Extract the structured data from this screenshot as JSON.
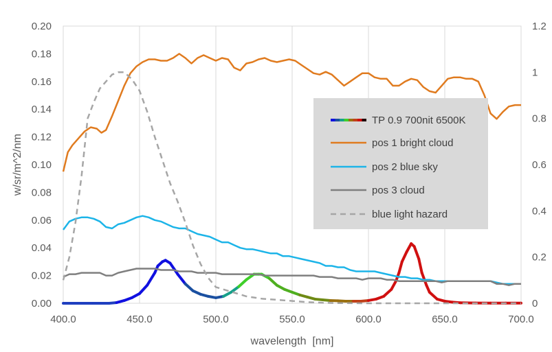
{
  "chart_data": {
    "type": "line",
    "title": "",
    "xlabel": "wavelength  [nm]",
    "ylabel": "w/sr/m^2/nm",
    "xlim": [
      400,
      700
    ],
    "ylim": [
      0,
      0.2
    ],
    "y2lim": [
      0,
      1.2
    ],
    "x_ticks": [
      "400.0",
      "450.0",
      "500.0",
      "550.0",
      "600.0",
      "650.0",
      "700.0"
    ],
    "y_ticks": [
      "0.00",
      "0.02",
      "0.04",
      "0.06",
      "0.08",
      "0.10",
      "0.12",
      "0.14",
      "0.16",
      "0.18",
      "0.20"
    ],
    "y2_ticks": [
      "0",
      "0.2",
      "0.4",
      "0.6",
      "0.8",
      "1",
      "1.2"
    ],
    "grid": "vertical",
    "legend_position": "center-right",
    "series": [
      {
        "name": "TP 0.9 700nit 6500K",
        "axis": "left",
        "style": "spectrum",
        "x": [
          400,
          410,
          420,
          425,
          430,
          435,
          440,
          445,
          450,
          455,
          460,
          462,
          465,
          467,
          470,
          475,
          480,
          485,
          490,
          495,
          500,
          505,
          510,
          515,
          520,
          525,
          528,
          530,
          535,
          540,
          545,
          550,
          555,
          560,
          565,
          570,
          575,
          580,
          585,
          590,
          595,
          600,
          605,
          610,
          615,
          618,
          620,
          622,
          625,
          628,
          630,
          633,
          635,
          638,
          640,
          645,
          650,
          655,
          660,
          670,
          680,
          690,
          700
        ],
        "y": [
          0,
          0,
          0,
          0,
          0,
          0.0005,
          0.002,
          0.004,
          0.007,
          0.013,
          0.022,
          0.027,
          0.03,
          0.031,
          0.029,
          0.021,
          0.014,
          0.009,
          0.0065,
          0.005,
          0.004,
          0.005,
          0.008,
          0.012,
          0.017,
          0.021,
          0.021,
          0.021,
          0.018,
          0.013,
          0.01,
          0.008,
          0.006,
          0.0045,
          0.003,
          0.0025,
          0.002,
          0.0018,
          0.0015,
          0.0015,
          0.0015,
          0.002,
          0.003,
          0.005,
          0.01,
          0.016,
          0.022,
          0.03,
          0.037,
          0.043,
          0.041,
          0.032,
          0.022,
          0.013,
          0.008,
          0.003,
          0.0015,
          0.0008,
          0.0004,
          0.0002,
          0.0001,
          0.0001,
          0.0001
        ]
      },
      {
        "name": "pos 1 bright cloud",
        "axis": "left",
        "color": "#E07B1F",
        "x": [
          400,
          403,
          406,
          410,
          414,
          418,
          422,
          425,
          428,
          432,
          436,
          440,
          444,
          448,
          452,
          456,
          460,
          464,
          468,
          472,
          476,
          480,
          484,
          488,
          492,
          496,
          500,
          504,
          508,
          512,
          516,
          520,
          524,
          528,
          532,
          536,
          540,
          544,
          548,
          552,
          556,
          560,
          564,
          568,
          572,
          576,
          580,
          584,
          588,
          592,
          596,
          600,
          604,
          608,
          612,
          616,
          620,
          624,
          628,
          632,
          636,
          640,
          644,
          648,
          652,
          656,
          660,
          664,
          668,
          672,
          676,
          680,
          684,
          688,
          692,
          696,
          700
        ],
        "y": [
          0.095,
          0.109,
          0.114,
          0.119,
          0.124,
          0.127,
          0.126,
          0.123,
          0.125,
          0.135,
          0.146,
          0.157,
          0.166,
          0.171,
          0.174,
          0.176,
          0.176,
          0.175,
          0.175,
          0.177,
          0.18,
          0.177,
          0.173,
          0.177,
          0.179,
          0.177,
          0.175,
          0.177,
          0.176,
          0.17,
          0.168,
          0.173,
          0.174,
          0.176,
          0.177,
          0.175,
          0.174,
          0.175,
          0.176,
          0.175,
          0.172,
          0.169,
          0.166,
          0.165,
          0.167,
          0.165,
          0.161,
          0.157,
          0.16,
          0.163,
          0.166,
          0.166,
          0.163,
          0.162,
          0.162,
          0.157,
          0.157,
          0.16,
          0.162,
          0.161,
          0.156,
          0.153,
          0.152,
          0.157,
          0.162,
          0.163,
          0.163,
          0.162,
          0.162,
          0.16,
          0.15,
          0.137,
          0.133,
          0.138,
          0.142,
          0.143,
          0.143
        ]
      },
      {
        "name": "pos 2 blue sky",
        "axis": "left",
        "color": "#1CB4E8",
        "x": [
          400,
          404,
          408,
          412,
          416,
          420,
          424,
          428,
          432,
          436,
          440,
          444,
          448,
          452,
          456,
          460,
          464,
          468,
          472,
          476,
          480,
          484,
          488,
          492,
          496,
          500,
          504,
          508,
          512,
          516,
          520,
          524,
          528,
          532,
          536,
          540,
          544,
          548,
          552,
          556,
          560,
          564,
          568,
          572,
          576,
          580,
          584,
          588,
          592,
          596,
          600,
          604,
          608,
          612,
          616,
          620,
          624,
          628,
          632,
          636,
          640,
          644,
          648,
          652,
          656,
          660,
          664,
          668,
          672,
          676,
          680,
          684,
          688,
          692,
          696,
          700
        ],
        "y": [
          0.053,
          0.059,
          0.061,
          0.062,
          0.062,
          0.061,
          0.059,
          0.055,
          0.054,
          0.057,
          0.058,
          0.06,
          0.062,
          0.063,
          0.062,
          0.06,
          0.059,
          0.057,
          0.055,
          0.054,
          0.054,
          0.052,
          0.05,
          0.049,
          0.048,
          0.046,
          0.044,
          0.044,
          0.042,
          0.04,
          0.039,
          0.039,
          0.038,
          0.037,
          0.036,
          0.036,
          0.034,
          0.034,
          0.033,
          0.032,
          0.031,
          0.03,
          0.029,
          0.027,
          0.027,
          0.026,
          0.026,
          0.024,
          0.023,
          0.023,
          0.023,
          0.023,
          0.022,
          0.021,
          0.02,
          0.019,
          0.019,
          0.018,
          0.018,
          0.017,
          0.017,
          0.016,
          0.016,
          0.016,
          0.016,
          0.016,
          0.016,
          0.016,
          0.016,
          0.016,
          0.016,
          0.015,
          0.014,
          0.014,
          0.014,
          0.014
        ]
      },
      {
        "name": "pos 3 cloud",
        "axis": "left",
        "color": "#7F7F7F",
        "x": [
          400,
          404,
          408,
          412,
          416,
          420,
          424,
          428,
          432,
          436,
          440,
          444,
          448,
          452,
          456,
          460,
          464,
          468,
          472,
          476,
          480,
          484,
          488,
          492,
          496,
          500,
          504,
          508,
          512,
          516,
          520,
          524,
          528,
          532,
          536,
          540,
          544,
          548,
          552,
          556,
          560,
          564,
          568,
          572,
          576,
          580,
          584,
          588,
          592,
          596,
          600,
          604,
          608,
          612,
          616,
          620,
          624,
          628,
          632,
          636,
          640,
          644,
          648,
          652,
          656,
          660,
          664,
          668,
          672,
          676,
          680,
          684,
          688,
          692,
          696,
          700
        ],
        "y": [
          0.019,
          0.021,
          0.021,
          0.022,
          0.022,
          0.022,
          0.022,
          0.02,
          0.02,
          0.022,
          0.023,
          0.024,
          0.025,
          0.025,
          0.025,
          0.025,
          0.024,
          0.024,
          0.024,
          0.023,
          0.023,
          0.023,
          0.022,
          0.022,
          0.022,
          0.022,
          0.021,
          0.021,
          0.021,
          0.021,
          0.021,
          0.021,
          0.021,
          0.02,
          0.02,
          0.02,
          0.02,
          0.02,
          0.02,
          0.02,
          0.02,
          0.02,
          0.019,
          0.019,
          0.019,
          0.018,
          0.018,
          0.018,
          0.018,
          0.017,
          0.018,
          0.018,
          0.018,
          0.017,
          0.017,
          0.016,
          0.016,
          0.016,
          0.016,
          0.016,
          0.016,
          0.016,
          0.015,
          0.016,
          0.016,
          0.016,
          0.016,
          0.016,
          0.016,
          0.016,
          0.016,
          0.014,
          0.014,
          0.013,
          0.014,
          0.014
        ]
      },
      {
        "name": "blue light hazard",
        "axis": "right",
        "color": "#A6A6A6",
        "dash": "8,6",
        "x": [
          400,
          404,
          408,
          412,
          416,
          420,
          424,
          428,
          432,
          436,
          440,
          445,
          450,
          455,
          460,
          465,
          470,
          475,
          480,
          485,
          490,
          495,
          500,
          505,
          510,
          520,
          530,
          540,
          550,
          560,
          570,
          580,
          600,
          650,
          700
        ],
        "y": [
          0.1,
          0.2,
          0.35,
          0.55,
          0.8,
          0.87,
          0.93,
          0.96,
          0.99,
          1.0,
          1.0,
          0.97,
          0.92,
          0.83,
          0.72,
          0.62,
          0.52,
          0.44,
          0.35,
          0.25,
          0.17,
          0.11,
          0.07,
          0.06,
          0.05,
          0.03,
          0.02,
          0.015,
          0.01,
          0.005,
          0.002,
          0.001,
          0,
          0,
          0
        ]
      }
    ]
  }
}
